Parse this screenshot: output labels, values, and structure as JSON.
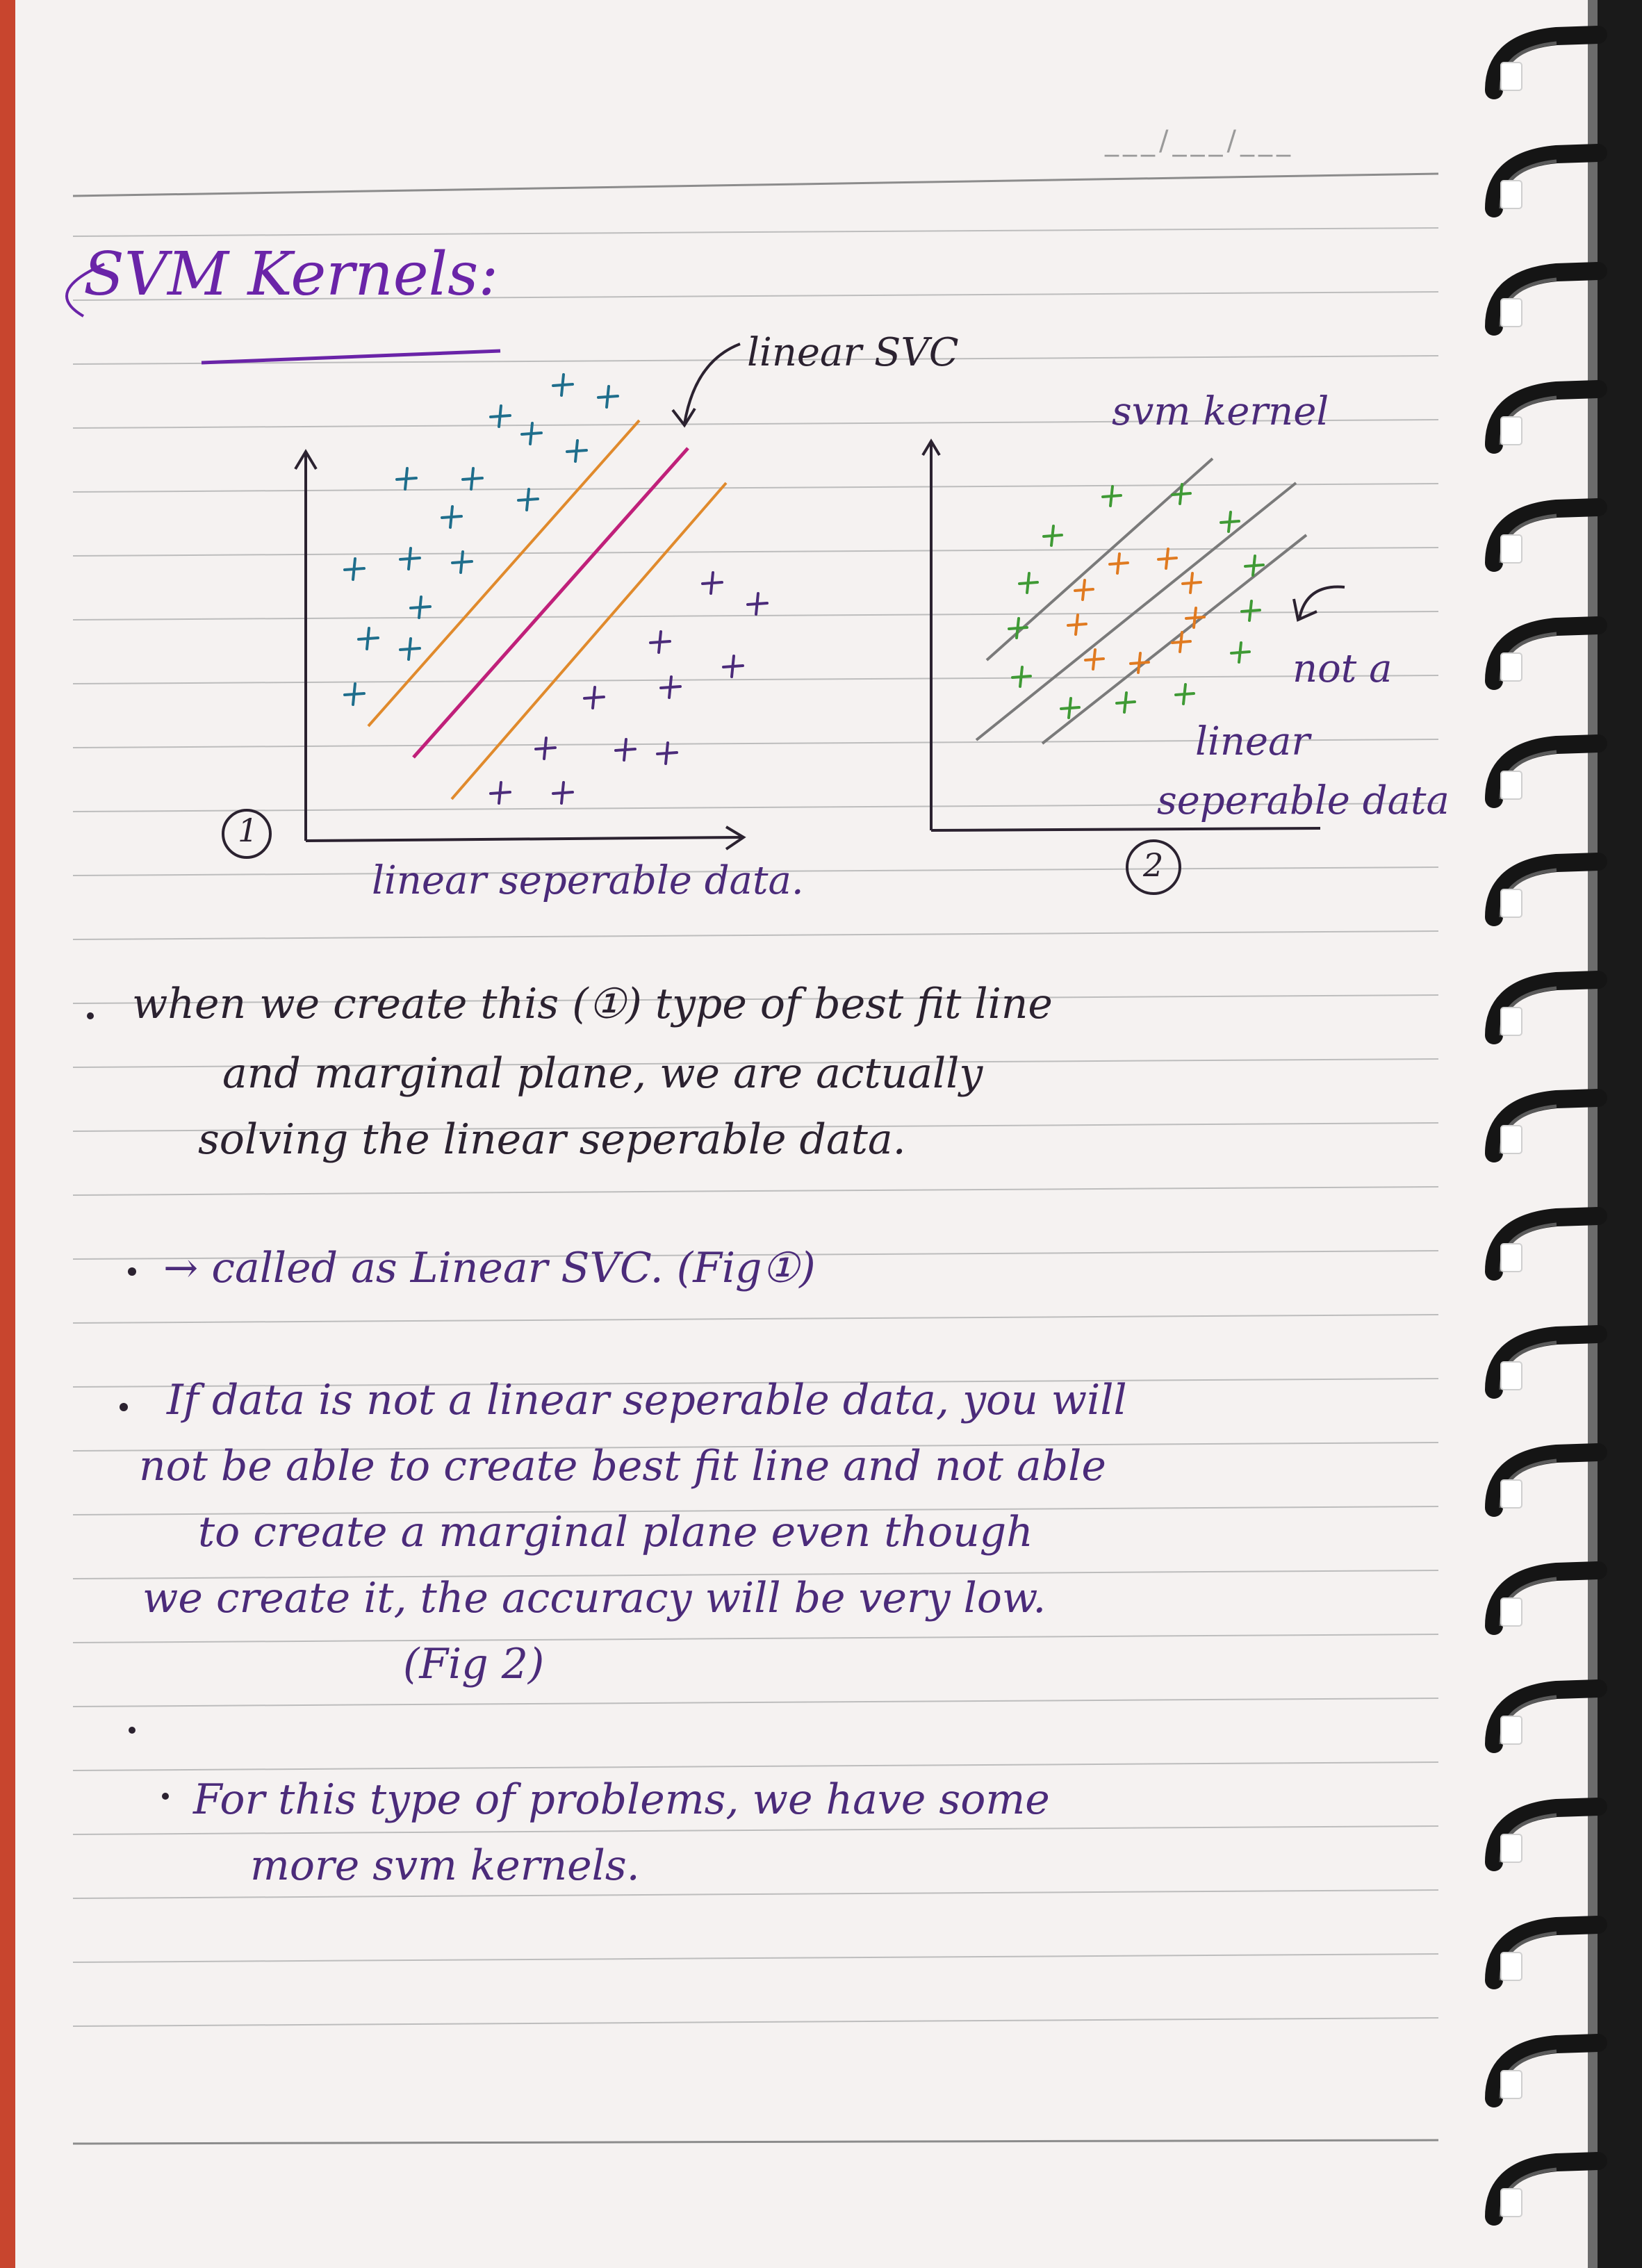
{
  "title": "SVM Kernels:",
  "date_placeholder": "___/___/___",
  "figure1": {
    "arrow_label": "linear SVC",
    "caption": "linear seperable data.",
    "number": "1"
  },
  "figure2": {
    "title": "svm kernel",
    "note_line1": "not a",
    "note_line2": "linear",
    "note_line3": "seperable data",
    "number": "2"
  },
  "notes": [
    {
      "lines": [
        "when we create this (①) type of best fit line",
        "and marginal plane, we are actually",
        "solving the linear seperable data."
      ]
    },
    {
      "lines": [
        "→ called as Linear SVC. (Fig①)"
      ]
    },
    {
      "lines": [
        "If data is not a linear seperable data, you will",
        "not be able to create best fit line and not able",
        "to create a marginal plane even though",
        "we create it, the accuracy will be very low.",
        "(Fig 2)"
      ]
    },
    {
      "lines": [
        "For this type of problems, we have some",
        "more svm kernels."
      ]
    }
  ],
  "colors": {
    "ink_purple": "#4b2b7a",
    "title_purple": "#6a24a8",
    "blue_points": "#1f6e8c",
    "orange_margin": "#e08a2c",
    "magenta_line": "#c0207a",
    "green_points": "#3f9a35",
    "orange_points": "#e07a20",
    "grey_lines": "#7a7a7a",
    "axis_black": "#2b2230"
  }
}
